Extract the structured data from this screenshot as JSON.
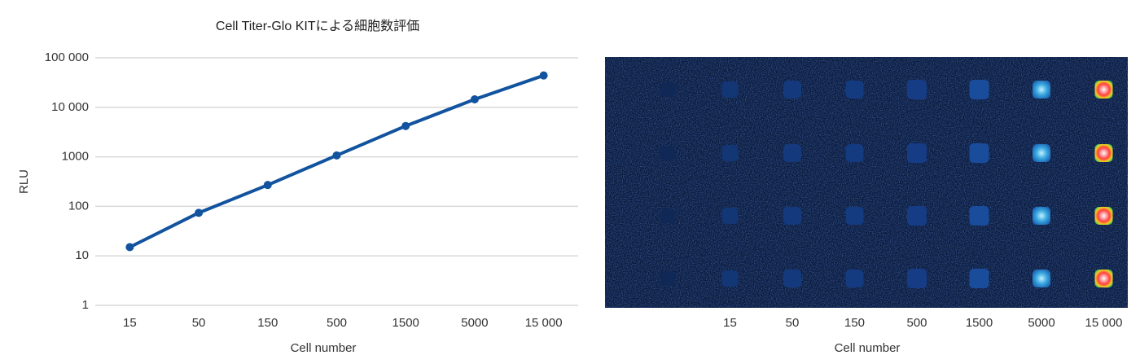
{
  "chart_data": [
    {
      "type": "line",
      "title": "Cell Titer-Glo KITによる細胞数評価",
      "xlabel": "Cell number",
      "ylabel": "RLU",
      "categories": [
        "15",
        "50",
        "150",
        "500",
        "1500",
        "5000",
        "15 000"
      ],
      "values": [
        15,
        74,
        270,
        1070,
        4200,
        14500,
        44000
      ],
      "color": "#11539e",
      "ylim": [
        1,
        100000
      ],
      "log_scale": true,
      "grid": true,
      "yticks": [
        1,
        10,
        100,
        1000,
        {
          "value": 10000,
          "label": "10 000"
        },
        {
          "value": 100000,
          "label": "100 000"
        }
      ]
    },
    {
      "type": "image",
      "xlabel": "Cell number",
      "categories": [
        null,
        "15",
        "50",
        "150",
        "500",
        "1500",
        "5000",
        "15 000"
      ]
    }
  ]
}
